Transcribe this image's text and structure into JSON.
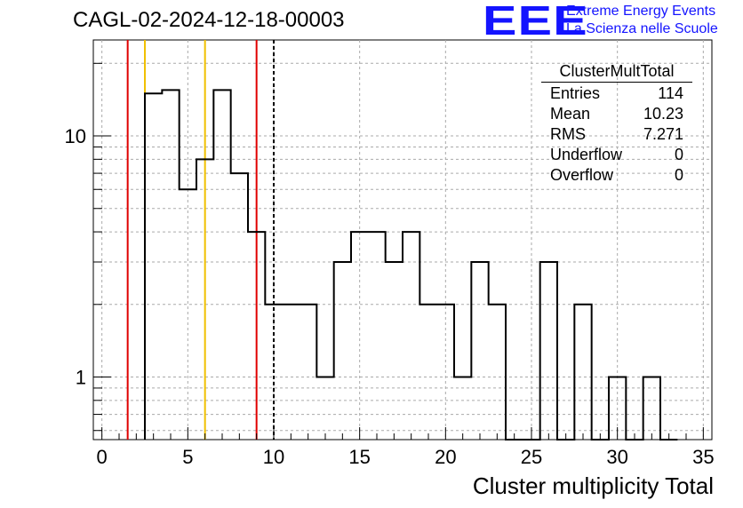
{
  "title": "CAGL-02-2024-12-18-00003",
  "logo": {
    "mark": "EEE",
    "line1": "Extreme Energy Events",
    "line2": "La Scienza nelle Scuole"
  },
  "stats_box": {
    "name": "ClusterMultTotal",
    "rows": [
      {
        "label": "Entries",
        "value": "114"
      },
      {
        "label": "Mean",
        "value": "10.23"
      },
      {
        "label": "RMS",
        "value": "7.271"
      },
      {
        "label": "Underflow",
        "value": "0"
      },
      {
        "label": "Overflow",
        "value": "0"
      }
    ]
  },
  "chart_data": {
    "type": "histogram",
    "title": "CAGL-02-2024-12-18-00003",
    "xlabel": "Cluster multiplicity Total",
    "ylabel": "",
    "xlim": [
      -0.5,
      35.5
    ],
    "ylim": [
      0.55,
      25
    ],
    "y_scale": "log",
    "grid": true,
    "x_ticks": [
      0,
      5,
      10,
      15,
      20,
      25,
      30,
      35
    ],
    "y_tick_labels": [
      1,
      10
    ],
    "bin_width": 1,
    "bin_low_edges": [
      2.5,
      3.5,
      4.5,
      5.5,
      6.5,
      7.5,
      8.5,
      9.5,
      10.5,
      11.5,
      12.5,
      13.5,
      14.5,
      15.5,
      16.5,
      17.5,
      18.5,
      19.5,
      20.5,
      21.5,
      22.5,
      23.5,
      24.5,
      25.5,
      26.5,
      27.5,
      28.5,
      29.5,
      30.5,
      31.5,
      32.5
    ],
    "counts": [
      15,
      15.5,
      6,
      8,
      15.5,
      7,
      4,
      2,
      2,
      2,
      1,
      3,
      4,
      4,
      3,
      4,
      2,
      2,
      1,
      3,
      2,
      0,
      0,
      3,
      0,
      2,
      0,
      1,
      0,
      1,
      0
    ],
    "vertical_lines": [
      {
        "x": 1.5,
        "color": "#e00000",
        "style": "solid"
      },
      {
        "x": 2.5,
        "color": "#f0c000",
        "style": "solid"
      },
      {
        "x": 6.0,
        "color": "#f0c000",
        "style": "solid"
      },
      {
        "x": 9.0,
        "color": "#e00000",
        "style": "solid"
      },
      {
        "x": 10.0,
        "color": "#000000",
        "style": "dashed"
      }
    ],
    "legend_placement": "top-right"
  }
}
